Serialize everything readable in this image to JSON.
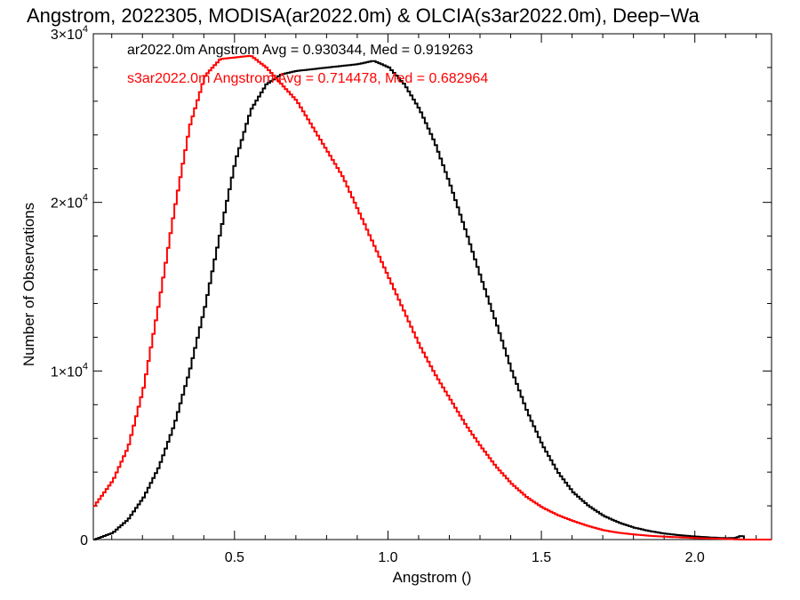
{
  "chart_data": {
    "type": "line",
    "title": "Angstrom, 2022305, MODISA(ar2022.0m) & OLCIA(s3ar2022.0m), Deep−Wa",
    "xlabel": "Angstrom ()",
    "ylabel": "Number of Observations",
    "xlim": [
      0.04,
      2.25
    ],
    "ylim": [
      0,
      30000
    ],
    "x_ticks": [
      {
        "value": 0.5,
        "label": "0.5"
      },
      {
        "value": 1.0,
        "label": "1.0"
      },
      {
        "value": 1.5,
        "label": "1.5"
      },
      {
        "value": 2.0,
        "label": "2.0"
      }
    ],
    "y_ticks": [
      {
        "value": 0,
        "mantissa": "0",
        "exponent": ""
      },
      {
        "value": 10000,
        "mantissa": "1×10",
        "exponent": "4"
      },
      {
        "value": 20000,
        "mantissa": "2×10",
        "exponent": "4"
      },
      {
        "value": 30000,
        "mantissa": "3×10",
        "exponent": "4"
      }
    ],
    "grid": false,
    "legend_position": "top-left",
    "series": [
      {
        "name": "ar2022.0m Angstrom Avg = 0.930344, Med = 0.919263",
        "color": "#000000",
        "x": [
          0.04,
          0.1,
          0.15,
          0.2,
          0.25,
          0.3,
          0.35,
          0.4,
          0.45,
          0.5,
          0.55,
          0.6,
          0.65,
          0.7,
          0.75,
          0.8,
          0.85,
          0.9,
          0.95,
          1.0,
          1.05,
          1.1,
          1.15,
          1.2,
          1.25,
          1.3,
          1.35,
          1.4,
          1.45,
          1.5,
          1.55,
          1.6,
          1.65,
          1.7,
          1.75,
          1.8,
          1.85,
          1.9,
          1.95,
          2.0,
          2.05,
          2.1,
          2.13,
          2.15,
          2.16,
          2.2,
          2.25
        ],
        "y": [
          0,
          400,
          1200,
          2500,
          4300,
          6800,
          10000,
          13800,
          18200,
          22500,
          25500,
          27000,
          27600,
          27800,
          27900,
          28000,
          28100,
          28200,
          28400,
          28000,
          27000,
          25500,
          23500,
          21000,
          18300,
          15500,
          12800,
          10000,
          7600,
          5600,
          4000,
          2800,
          2000,
          1400,
          1000,
          700,
          500,
          350,
          250,
          180,
          120,
          80,
          100,
          250,
          0,
          0,
          0
        ]
      },
      {
        "name": "s3ar2022.0m Angstrom Avg = 0.714478, Med = 0.682964",
        "color": "#ff0000",
        "x": [
          0.04,
          0.1,
          0.15,
          0.2,
          0.25,
          0.3,
          0.35,
          0.4,
          0.45,
          0.5,
          0.55,
          0.6,
          0.65,
          0.7,
          0.75,
          0.8,
          0.85,
          0.9,
          0.95,
          1.0,
          1.05,
          1.1,
          1.15,
          1.2,
          1.25,
          1.3,
          1.35,
          1.4,
          1.45,
          1.5,
          1.55,
          1.6,
          1.65,
          1.7,
          1.75,
          1.8,
          1.85,
          1.9,
          1.95,
          2.0,
          2.05,
          2.1,
          2.15,
          2.2,
          2.25
        ],
        "y": [
          2000,
          3500,
          5500,
          9000,
          14000,
          19500,
          24500,
          27500,
          28500,
          28600,
          28700,
          28000,
          27000,
          26000,
          24500,
          23000,
          21500,
          19500,
          17500,
          15500,
          13500,
          11500,
          9800,
          8300,
          6800,
          5500,
          4300,
          3300,
          2500,
          1900,
          1450,
          1100,
          800,
          550,
          400,
          300,
          220,
          170,
          130,
          90,
          60,
          40,
          0,
          0,
          0
        ]
      }
    ]
  }
}
